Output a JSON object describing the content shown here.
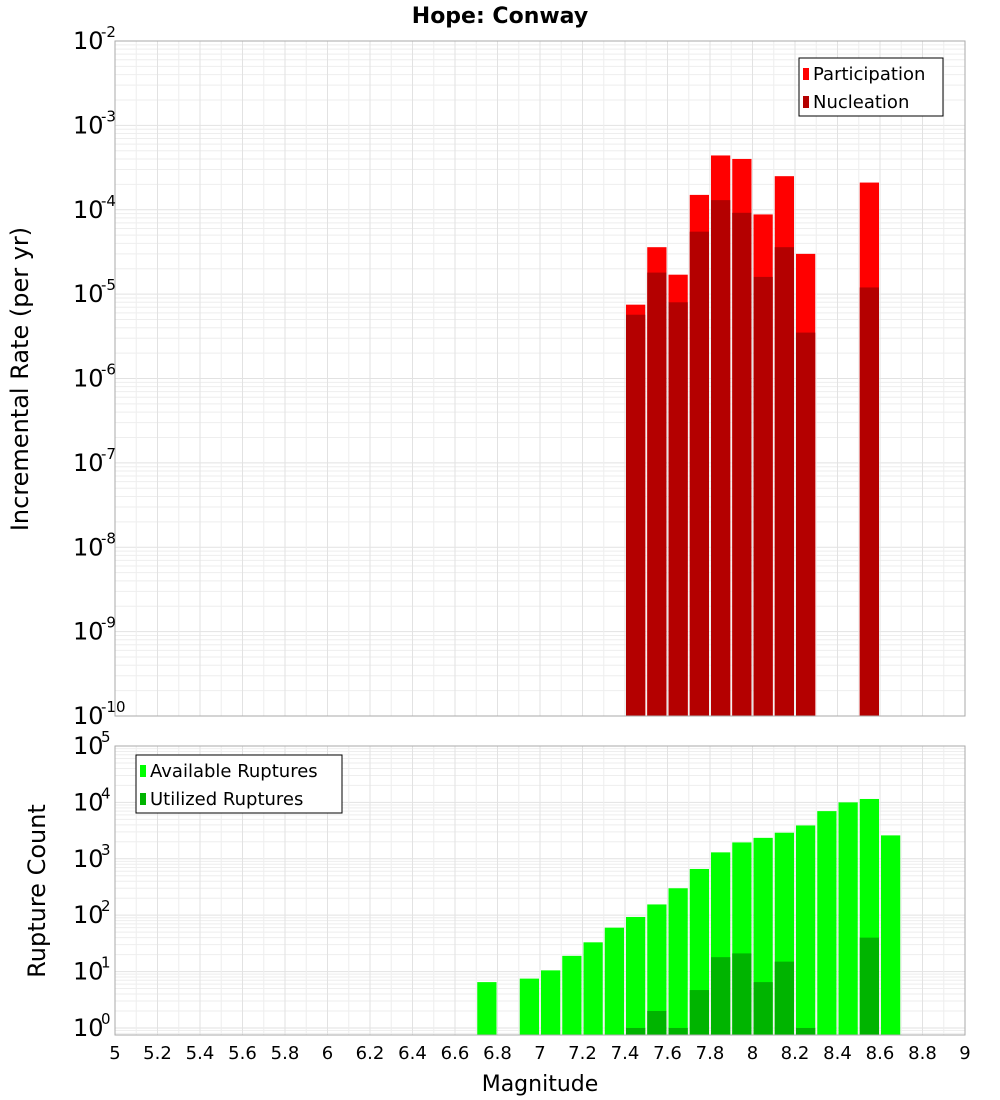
{
  "chart_data": [
    {
      "type": "bar",
      "title": "Hope: Conway",
      "ylabel": "Incremental Rate (per yr)",
      "xlabel": "",
      "xlim": [
        5,
        9
      ],
      "ylim": [
        1e-10,
        0.01
      ],
      "yscale": "log",
      "grid": true,
      "legend_position": "top-right",
      "series": [
        {
          "name": "Participation",
          "color": "#ff0000",
          "x": [
            7.45,
            7.55,
            7.65,
            7.75,
            7.85,
            7.95,
            8.05,
            8.15,
            8.25,
            8.55
          ],
          "values": [
            7.5e-06,
            3.6e-05,
            1.7e-05,
            0.00015,
            0.00044,
            0.0004,
            8.8e-05,
            0.00025,
            3e-05,
            0.00021
          ]
        },
        {
          "name": "Nucleation",
          "color": "#b40000",
          "x": [
            7.45,
            7.55,
            7.65,
            7.75,
            7.85,
            7.95,
            8.05,
            8.15,
            8.25,
            8.55
          ],
          "values": [
            5.7e-06,
            1.8e-05,
            8e-06,
            5.5e-05,
            0.00013,
            9.2e-05,
            1.6e-05,
            3.6e-05,
            3.5e-06,
            1.2e-05
          ]
        }
      ]
    },
    {
      "type": "bar",
      "title": "",
      "ylabel": "Rupture Count",
      "xlabel": "Magnitude",
      "xlim": [
        5,
        9
      ],
      "ylim": [
        0.75,
        100000
      ],
      "yscale": "log",
      "grid": true,
      "legend_position": "top-left",
      "xticks": [
        "5",
        "5.2",
        "5.4",
        "5.6",
        "5.8",
        "6",
        "6.2",
        "6.4",
        "6.6",
        "6.8",
        "7",
        "7.2",
        "7.4",
        "7.6",
        "7.8",
        "8",
        "8.2",
        "8.4",
        "8.6",
        "8.8",
        "9"
      ],
      "series": [
        {
          "name": "Available Ruptures",
          "color": "#00ff00",
          "x": [
            6.75,
            6.95,
            7.05,
            7.15,
            7.25,
            7.35,
            7.45,
            7.55,
            7.65,
            7.75,
            7.85,
            7.95,
            8.05,
            8.15,
            8.25,
            8.35,
            8.45,
            8.55,
            8.65
          ],
          "values": [
            6.5,
            7.5,
            10.5,
            19,
            33,
            60,
            93,
            155,
            300,
            660,
            1300,
            1950,
            2350,
            2900,
            3900,
            7000,
            10000,
            11500,
            2600
          ]
        },
        {
          "name": "Utilized Ruptures",
          "color": "#00b400",
          "x": [
            7.45,
            7.55,
            7.65,
            7.75,
            7.85,
            7.95,
            8.05,
            8.15,
            8.25,
            8.55
          ],
          "values": [
            1,
            2,
            1,
            4.7,
            18,
            21,
            6.5,
            15,
            1,
            40
          ]
        }
      ]
    }
  ]
}
